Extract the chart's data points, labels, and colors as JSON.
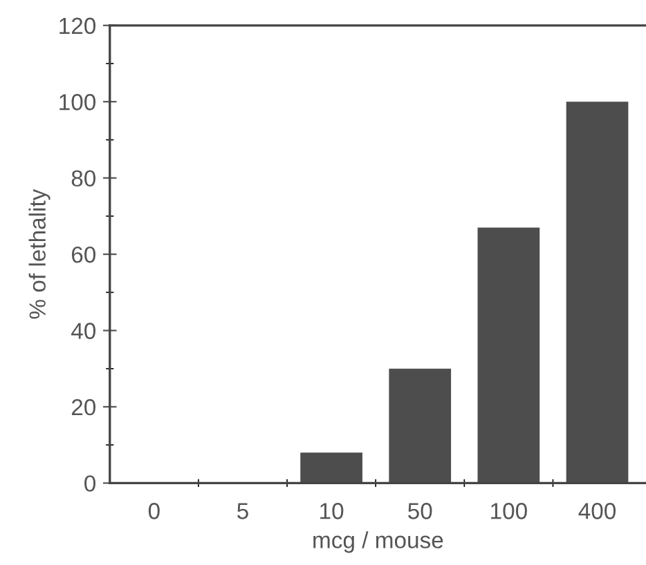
{
  "chart_data": {
    "type": "bar",
    "xlabel": "mcg / mouse",
    "ylabel": "% of lethality",
    "categories": [
      "0",
      "5",
      "10",
      "50",
      "100",
      "400"
    ],
    "values": [
      0,
      0,
      8,
      30,
      67,
      100
    ],
    "color": "#4d4d4d",
    "ylim": [
      0,
      120
    ],
    "yticks": [
      0,
      20,
      40,
      60,
      80,
      100,
      120
    ],
    "grid": false
  }
}
